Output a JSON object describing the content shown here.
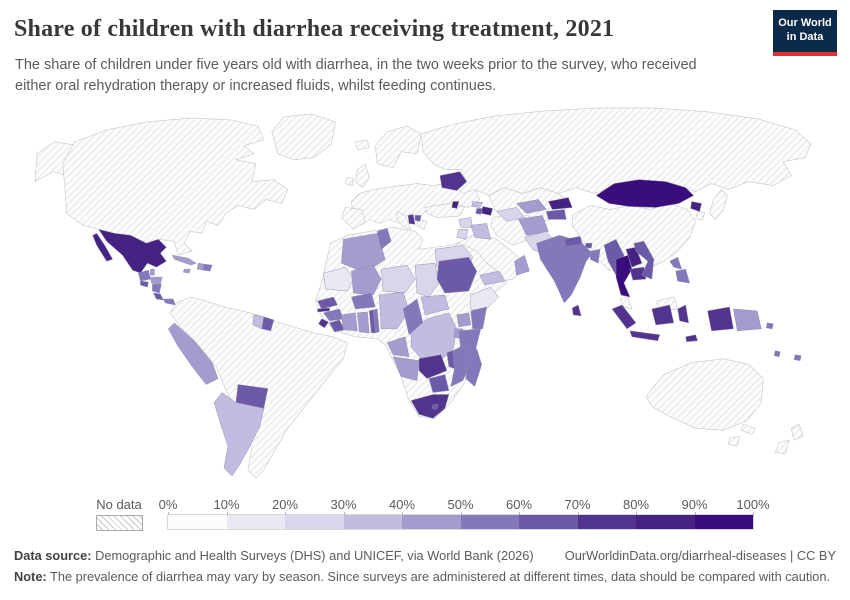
{
  "header": {
    "title": "Share of children with diarrhea receiving treatment, 2021",
    "subtitle": "The share of children under five years old with diarrhea, in the two weeks prior to the survey, who received either oral rehydration therapy or increased fluids, whilst feeding continues.",
    "logo_line1": "Our World",
    "logo_line2": "in Data"
  },
  "legend": {
    "no_data_label": "No data",
    "ticks": [
      "0%",
      "10%",
      "20%",
      "30%",
      "40%",
      "50%",
      "60%",
      "70%",
      "80%",
      "90%",
      "100%"
    ]
  },
  "footer": {
    "datasource_label": "Data source:",
    "datasource_text": " Demographic and Health Surveys (DHS) and UNICEF, via World Bank (2026)",
    "attribution": "OurWorldinData.org/diarrheal-diseases | CC BY",
    "note_label": "Note:",
    "note_text": " The prevalence of diarrhea may vary by season. Since surveys are administered at different times, data should be compared with caution."
  },
  "chart_data": {
    "type": "heatmap",
    "subtype": "choropleth_world_map",
    "title": "Share of children with diarrhea receiving treatment",
    "year": 2021,
    "unit": "%",
    "legend_range": [
      0,
      100
    ],
    "bins": [
      {
        "range": "0-10%",
        "color": "#fcfbfd"
      },
      {
        "range": "10-20%",
        "color": "#ebe8f4"
      },
      {
        "range": "20-30%",
        "color": "#d9d5eb"
      },
      {
        "range": "30-40%",
        "color": "#c2bce0"
      },
      {
        "range": "40-50%",
        "color": "#a49bce"
      },
      {
        "range": "50-60%",
        "color": "#8478ba"
      },
      {
        "range": "60-70%",
        "color": "#6c59a7"
      },
      {
        "range": "70-80%",
        "color": "#52348e"
      },
      {
        "range": "80-90%",
        "color": "#442383"
      },
      {
        "range": "90-100%",
        "color": "#3a0d7d"
      }
    ],
    "countries": [
      {
        "name": "Mexico",
        "bin": "80-90%"
      },
      {
        "name": "Guatemala",
        "bin": "50-60%"
      },
      {
        "name": "Belize",
        "bin": "40-50%"
      },
      {
        "name": "El Salvador",
        "bin": "60-70%"
      },
      {
        "name": "Honduras",
        "bin": "40-50%"
      },
      {
        "name": "Nicaragua",
        "bin": "50-60%"
      },
      {
        "name": "Costa Rica",
        "bin": "60-70%"
      },
      {
        "name": "Panama",
        "bin": "50-60%"
      },
      {
        "name": "Cuba",
        "bin": "40-50%"
      },
      {
        "name": "Jamaica",
        "bin": "40-50%"
      },
      {
        "name": "Haiti",
        "bin": "40-50%"
      },
      {
        "name": "Dominican Republic",
        "bin": "50-60%"
      },
      {
        "name": "Guyana",
        "bin": "30-40%"
      },
      {
        "name": "Suriname",
        "bin": "60-70%"
      },
      {
        "name": "Peru",
        "bin": "40-50%"
      },
      {
        "name": "Paraguay",
        "bin": "60-70%"
      },
      {
        "name": "Argentina",
        "bin": "30-40%"
      },
      {
        "name": "Algeria",
        "bin": "40-50%"
      },
      {
        "name": "Tunisia",
        "bin": "50-60%"
      },
      {
        "name": "Egypt",
        "bin": "20-30%"
      },
      {
        "name": "Mauritania",
        "bin": "10-20%"
      },
      {
        "name": "Mali",
        "bin": "40-50%"
      },
      {
        "name": "Niger",
        "bin": "20-30%"
      },
      {
        "name": "Chad",
        "bin": "20-30%"
      },
      {
        "name": "Sudan",
        "bin": "60-70%"
      },
      {
        "name": "Ethiopia",
        "bin": "10-20%"
      },
      {
        "name": "Senegal",
        "bin": "60-70%"
      },
      {
        "name": "Gambia",
        "bin": "70-80%"
      },
      {
        "name": "Guinea",
        "bin": "50-60%"
      },
      {
        "name": "Sierra Leone",
        "bin": "70-80%"
      },
      {
        "name": "Liberia",
        "bin": "60-70%"
      },
      {
        "name": "Cote d'Ivoire",
        "bin": "40-50%"
      },
      {
        "name": "Ghana",
        "bin": "40-50%"
      },
      {
        "name": "Togo",
        "bin": "60-70%"
      },
      {
        "name": "Benin",
        "bin": "50-60%"
      },
      {
        "name": "Burkina Faso",
        "bin": "50-60%"
      },
      {
        "name": "Nigeria",
        "bin": "30-40%"
      },
      {
        "name": "Cameroon",
        "bin": "50-60%"
      },
      {
        "name": "Central African Republic",
        "bin": "30-40%"
      },
      {
        "name": "Gabon",
        "bin": "40-50%"
      },
      {
        "name": "Congo",
        "bin": "30-40%"
      },
      {
        "name": "DR Congo",
        "bin": "30-40%"
      },
      {
        "name": "Uganda",
        "bin": "40-50%"
      },
      {
        "name": "Kenya",
        "bin": "50-60%"
      },
      {
        "name": "Rwanda",
        "bin": "40-50%"
      },
      {
        "name": "Burundi",
        "bin": "40-50%"
      },
      {
        "name": "Tanzania",
        "bin": "50-60%"
      },
      {
        "name": "Angola",
        "bin": "40-50%"
      },
      {
        "name": "Zambia",
        "bin": "70-80%"
      },
      {
        "name": "Malawi",
        "bin": "60-70%"
      },
      {
        "name": "Mozambique",
        "bin": "50-60%"
      },
      {
        "name": "Zimbabwe",
        "bin": "60-70%"
      },
      {
        "name": "Madagascar",
        "bin": "50-60%"
      },
      {
        "name": "South Africa",
        "bin": "70-80%"
      },
      {
        "name": "Lesotho",
        "bin": "60-70%"
      },
      {
        "name": "Belarus",
        "bin": "70-80%"
      },
      {
        "name": "Moldova",
        "bin": "80-90%"
      },
      {
        "name": "Albania",
        "bin": "70-80%"
      },
      {
        "name": "North Macedonia",
        "bin": "60-70%"
      },
      {
        "name": "Georgia",
        "bin": "30-40%"
      },
      {
        "name": "Armenia",
        "bin": "60-70%"
      },
      {
        "name": "Azerbaijan",
        "bin": "80-90%"
      },
      {
        "name": "Syria",
        "bin": "20-30%"
      },
      {
        "name": "Iraq",
        "bin": "30-40%"
      },
      {
        "name": "Jordan",
        "bin": "20-30%"
      },
      {
        "name": "Yemen",
        "bin": "30-40%"
      },
      {
        "name": "Oman",
        "bin": "40-50%"
      },
      {
        "name": "Turkmenistan",
        "bin": "20-30%"
      },
      {
        "name": "Uzbekistan",
        "bin": "40-50%"
      },
      {
        "name": "Kyrgyzstan",
        "bin": "80-90%"
      },
      {
        "name": "Tajikistan",
        "bin": "60-70%"
      },
      {
        "name": "Afghanistan",
        "bin": "40-50%"
      },
      {
        "name": "Pakistan",
        "bin": "20-30%"
      },
      {
        "name": "India",
        "bin": "50-60%"
      },
      {
        "name": "Nepal",
        "bin": "60-70%"
      },
      {
        "name": "Bhutan",
        "bin": "60-70%"
      },
      {
        "name": "Bangladesh",
        "bin": "50-60%"
      },
      {
        "name": "Sri Lanka",
        "bin": "70-80%"
      },
      {
        "name": "Mongolia",
        "bin": "90-100%"
      },
      {
        "name": "North Korea",
        "bin": "80-90%"
      },
      {
        "name": "Myanmar",
        "bin": "60-70%"
      },
      {
        "name": "Thailand",
        "bin": "90-100%"
      },
      {
        "name": "Laos",
        "bin": "80-90%"
      },
      {
        "name": "Cambodia",
        "bin": "70-80%"
      },
      {
        "name": "Vietnam",
        "bin": "60-70%"
      },
      {
        "name": "Philippines",
        "bin": "50-60%"
      },
      {
        "name": "Indonesia",
        "bin": "70-80%"
      },
      {
        "name": "Timor-Leste",
        "bin": "70-80%"
      },
      {
        "name": "Papua New Guinea",
        "bin": "40-50%"
      },
      {
        "name": "Solomon Islands",
        "bin": "50-60%"
      },
      {
        "name": "Vanuatu",
        "bin": "50-60%"
      },
      {
        "name": "Fiji",
        "bin": "50-60%"
      }
    ],
    "no_data_regions": [
      "United States",
      "Canada",
      "Greenland",
      "Brazil",
      "Colombia",
      "Venezuela",
      "Ecuador",
      "Bolivia",
      "Chile",
      "Uruguay",
      "Europe (most countries)",
      "Russia",
      "Ukraine",
      "Kazakhstan",
      "China",
      "Japan",
      "South Korea",
      "Turkey",
      "Saudi Arabia",
      "Iran",
      "Morocco",
      "Libya",
      "Somalia",
      "South Sudan",
      "Namibia",
      "Botswana",
      "Malaysia",
      "Australia",
      "New Zealand"
    ]
  }
}
